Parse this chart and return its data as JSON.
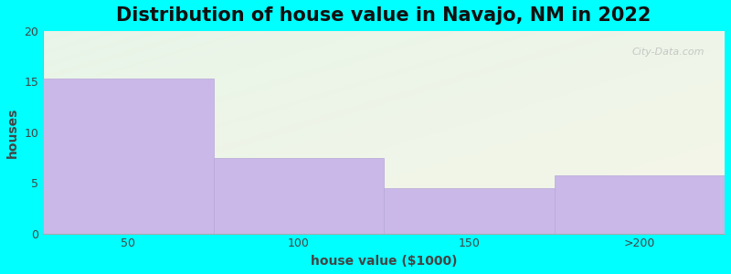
{
  "title": "Distribution of house value in Navajo, NM in 2022",
  "categories": [
    "50",
    "100",
    "150",
    ">200"
  ],
  "values": [
    15.3,
    7.5,
    4.5,
    5.7
  ],
  "bar_color": "#c9b8e8",
  "bar_edgecolor": "#b8a8d8",
  "xlabel": "house value ($1000)",
  "ylabel": "houses",
  "ylim": [
    0,
    20
  ],
  "yticks": [
    0,
    5,
    10,
    15,
    20
  ],
  "background_color": "#00ffff",
  "grad_color_topleft": "#e8f5e8",
  "grad_color_bottomright": "#f5f5e8",
  "title_fontsize": 15,
  "label_fontsize": 10,
  "tick_fontsize": 9,
  "watermark": "City-Data.com"
}
